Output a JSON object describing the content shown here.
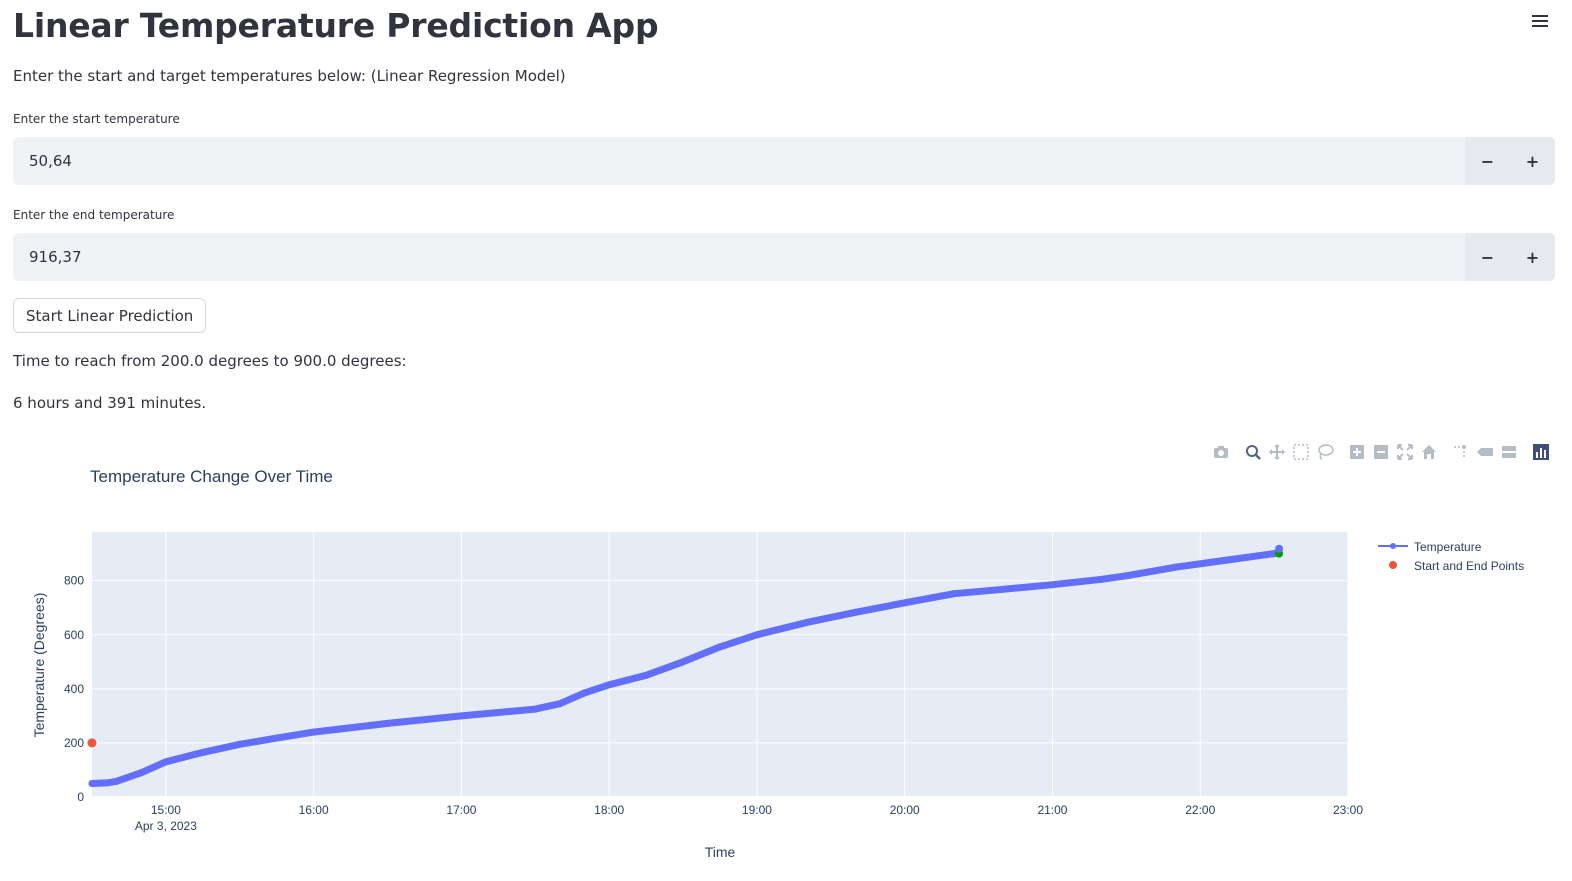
{
  "app": {
    "title": "Linear Temperature Prediction App",
    "subtitle": "Enter the start and target temperatures below: (Linear Regression Model)"
  },
  "start_input": {
    "label": "Enter the start temperature",
    "value": "50,64",
    "minus": "−",
    "plus": "+"
  },
  "end_input": {
    "label": "Enter the end temperature",
    "value": "916,37",
    "minus": "−",
    "plus": "+"
  },
  "button": {
    "label": "Start Linear Prediction"
  },
  "result": {
    "line1": "Time to reach from 200.0 degrees to 900.0 degrees:",
    "line2": "6 hours and 391 minutes."
  },
  "modebar_icons": [
    "camera-icon",
    "zoom-icon",
    "pan-icon",
    "box-select-icon",
    "lasso-select-icon",
    "zoom-in-icon",
    "zoom-out-icon",
    "autoscale-icon",
    "reset-axes-icon",
    "spike-lines-icon",
    "hover-closest-icon",
    "hover-compare-icon",
    "plotly-logo-icon"
  ],
  "chart_data": {
    "type": "line",
    "title": "Temperature Change Over Time",
    "xlabel": "Time",
    "ylabel": "Temperature (Degrees)",
    "x_range": [
      "2023-04-03 14:30",
      "2023-04-03 23:00"
    ],
    "ylim": [
      0,
      980
    ],
    "x_ticks": [
      "15:00",
      "16:00",
      "17:00",
      "18:00",
      "19:00",
      "20:00",
      "21:00",
      "22:00",
      "23:00"
    ],
    "x_tick_date": "Apr 3, 2023",
    "y_ticks": [
      0,
      200,
      400,
      600,
      800
    ],
    "grid": true,
    "legend_position": "top-right",
    "series": [
      {
        "name": "Temperature",
        "color": "#636efa",
        "points": [
          [
            "2023-04-03 14:30",
            50
          ],
          [
            "2023-04-03 14:36",
            52
          ],
          [
            "2023-04-03 14:40",
            58
          ],
          [
            "2023-04-03 14:50",
            90
          ],
          [
            "2023-04-03 15:00",
            130
          ],
          [
            "2023-04-03 15:15",
            165
          ],
          [
            "2023-04-03 15:30",
            195
          ],
          [
            "2023-04-03 15:45",
            218
          ],
          [
            "2023-04-03 16:00",
            240
          ],
          [
            "2023-04-03 16:30",
            272
          ],
          [
            "2023-04-03 17:00",
            300
          ],
          [
            "2023-04-03 17:30",
            325
          ],
          [
            "2023-04-03 17:40",
            345
          ],
          [
            "2023-04-03 17:50",
            385
          ],
          [
            "2023-04-03 18:00",
            415
          ],
          [
            "2023-04-03 18:15",
            450
          ],
          [
            "2023-04-03 18:30",
            500
          ],
          [
            "2023-04-03 18:45",
            555
          ],
          [
            "2023-04-03 19:00",
            600
          ],
          [
            "2023-04-03 19:20",
            645
          ],
          [
            "2023-04-03 19:40",
            683
          ],
          [
            "2023-04-03 20:00",
            718
          ],
          [
            "2023-04-03 20:20",
            752
          ],
          [
            "2023-04-03 20:40",
            768
          ],
          [
            "2023-04-03 21:00",
            785
          ],
          [
            "2023-04-03 21:20",
            805
          ],
          [
            "2023-04-03 21:30",
            818
          ],
          [
            "2023-04-03 21:50",
            850
          ],
          [
            "2023-04-03 22:10",
            875
          ],
          [
            "2023-04-03 22:30",
            900
          ],
          [
            "2023-04-03 22:32",
            905
          ]
        ]
      },
      {
        "name": "Start and End Points",
        "color": "#ef553b",
        "points": [
          [
            "2023-04-03 14:30",
            200
          ]
        ]
      }
    ],
    "extra_markers": [
      {
        "color": "#00a000",
        "points": [
          [
            "2023-04-03 22:32",
            900
          ]
        ]
      },
      {
        "color": "#636efa",
        "points": [
          [
            "2023-04-03 22:32",
            918
          ]
        ]
      }
    ]
  }
}
